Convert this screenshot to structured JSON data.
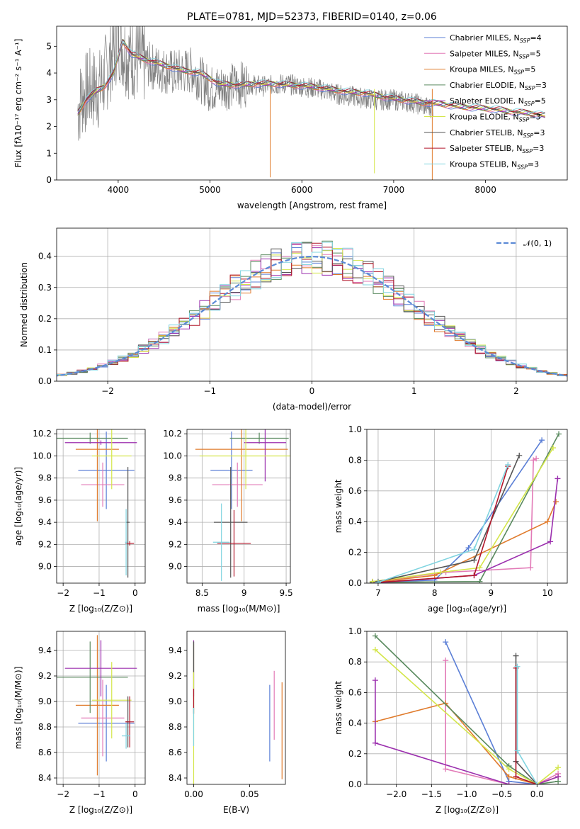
{
  "chart_data": [
    {
      "id": "spectrum",
      "type": "line",
      "title": "PLATE=0781, MJD=52373, FIBERID=0140, z=0.06",
      "xlabel": "wavelength [Angstrom, rest frame]",
      "ylabel": "Flux [fλ10⁻¹⁷ erg cm⁻² s⁻¹ A⁻¹]",
      "xlim": [
        3330,
        8890
      ],
      "ylim": [
        0,
        5.75
      ],
      "xticks": [
        4000,
        5000,
        6000,
        7000,
        8000
      ],
      "yticks": [
        0,
        1,
        2,
        3,
        4,
        5
      ],
      "grid": false,
      "legend_position": "top-right",
      "data_color": "#808080",
      "data_x": [
        3560,
        3600,
        3700,
        3800,
        3900,
        4000,
        4100,
        4200,
        4400,
        4600,
        4800,
        5000,
        5200,
        5400,
        5600,
        5800,
        6000,
        6200,
        6400,
        6600,
        6800,
        7000,
        7200,
        7400,
        7430
      ],
      "data_y": [
        2.6,
        3.1,
        3.4,
        3.4,
        4.3,
        5.3,
        4.6,
        4.5,
        4.2,
        4.0,
        4.1,
        3.4,
        3.5,
        3.6,
        3.5,
        3.6,
        3.5,
        3.4,
        3.2,
        3.1,
        3.0,
        3.0,
        2.9,
        2.7,
        2.7
      ],
      "model_x": [
        3560,
        3650,
        3750,
        3850,
        3950,
        4050,
        4150,
        4300,
        4500,
        4700,
        4900,
        5100,
        5300,
        5500,
        5700,
        5900,
        6100,
        6300,
        6500,
        6700,
        6900,
        7100,
        7300,
        7500,
        7700,
        7900,
        8100,
        8300,
        8500,
        8650
      ],
      "model_y": [
        2.5,
        3.0,
        3.3,
        3.5,
        4.0,
        5.2,
        4.7,
        4.5,
        4.3,
        4.1,
        4.0,
        3.6,
        3.55,
        3.6,
        3.6,
        3.55,
        3.5,
        3.4,
        3.3,
        3.25,
        3.1,
        3.0,
        2.9,
        2.85,
        2.75,
        2.7,
        2.65,
        2.55,
        2.5,
        2.4
      ],
      "series": [
        {
          "name": "Chabrier MILES, N_SSP=4",
          "color": "#5b7fd6"
        },
        {
          "name": "Salpeter MILES, N_SSP=5",
          "color": "#e27ab7"
        },
        {
          "name": "Kroupa MILES, N_SSP=5",
          "color": "#e07b2c"
        },
        {
          "name": "Chabrier ELODIE, N_SSP=3",
          "color": "#5a8a5f"
        },
        {
          "name": "Salpeter ELODIE, N_SSP=5",
          "color": "#9b2fae"
        },
        {
          "name": "Kroupa ELODIE, N_SSP=3",
          "color": "#d4e64a"
        },
        {
          "name": "Chabrier STELIB, N_SSP=3",
          "color": "#555555"
        },
        {
          "name": "Salpeter STELIB, N_SSP=3",
          "color": "#b2182b"
        },
        {
          "name": "Kroupa STELIB, N_SSP=3",
          "color": "#80d4e0"
        }
      ],
      "dips": [
        {
          "x": 5655,
          "to": 0.1,
          "color": "#e07b2c"
        },
        {
          "x": 6790,
          "to": 0.25,
          "color": "#d4e64a"
        },
        {
          "x": 7420,
          "to": 0.0,
          "color": "#e07b2c"
        }
      ]
    },
    {
      "id": "residuals",
      "type": "line",
      "xlabel": "(data-model)/error",
      "ylabel": "Normed distribution",
      "xlim": [
        -2.5,
        2.5
      ],
      "ylim": [
        0,
        0.49
      ],
      "xticks": [
        -2,
        -1,
        0,
        1,
        2
      ],
      "yticks": [
        0.0,
        0.1,
        0.2,
        0.3,
        0.4
      ],
      "grid": true,
      "legend_position": "top-right",
      "normal_label": "𝒩(0, 1)",
      "normal_color": "#5b8ad6",
      "bin_width": 0.1
    },
    {
      "id": "age-vs-z",
      "type": "scatter",
      "xlabel": "Z [log₁₀(Z/Z⊙)]",
      "ylabel": "age  [log₁₀(age/yr)]",
      "xlim": [
        -2.18,
        0.28
      ],
      "ylim": [
        8.85,
        10.24
      ],
      "xticks": [
        -2,
        -1,
        0
      ],
      "yticks": [
        9.0,
        9.2,
        9.4,
        9.6,
        9.8,
        10.0,
        10.2
      ],
      "grid": true,
      "points": [
        {
          "x": -0.8,
          "y": 9.87,
          "xerr": 0.78,
          "yerr": 0.35,
          "color": "#5b7fd6"
        },
        {
          "x": -0.9,
          "y": 9.74,
          "xerr": 0.6,
          "yerr": 0.2,
          "color": "#e27ab7"
        },
        {
          "x": -1.05,
          "y": 10.06,
          "xerr": 0.6,
          "yerr": 0.65,
          "color": "#e07b2c"
        },
        {
          "x": -1.25,
          "y": 10.16,
          "xerr": 1.05,
          "yerr": 0.05,
          "color": "#5a8a5f"
        },
        {
          "x": -0.95,
          "y": 10.12,
          "xerr": 1.0,
          "yerr": 0.02,
          "color": "#9b2fae"
        },
        {
          "x": -0.65,
          "y": 10.0,
          "xerr": 0.55,
          "yerr": 0.3,
          "color": "#d4e64a"
        },
        {
          "x": -0.2,
          "y": 9.4,
          "xerr": 0.05,
          "yerr": 0.5,
          "color": "#555555"
        },
        {
          "x": -0.15,
          "y": 9.21,
          "xerr": 0.12,
          "yerr": 0.02,
          "color": "#b2182b"
        },
        {
          "x": -0.25,
          "y": 9.22,
          "xerr": 0.03,
          "yerr": 0.3,
          "color": "#80d4e0"
        }
      ]
    },
    {
      "id": "age-vs-mass",
      "type": "scatter",
      "xlabel": "mass [log₁₀(M/M⊙)]",
      "xlim": [
        8.32,
        9.55
      ],
      "ylim": [
        8.85,
        10.24
      ],
      "xticks": [
        8.5,
        9.0,
        9.5
      ],
      "yticks": [
        9.0,
        9.2,
        9.4,
        9.6,
        9.8,
        10.0,
        10.2
      ],
      "grid": true,
      "points": [
        {
          "x": 8.85,
          "y": 9.87,
          "xerr": 0.25,
          "yerr": 0.35,
          "color": "#5b7fd6"
        },
        {
          "x": 8.92,
          "y": 9.74,
          "xerr": 0.3,
          "yerr": 0.2,
          "color": "#e27ab7"
        },
        {
          "x": 8.97,
          "y": 10.06,
          "xerr": 0.55,
          "yerr": 0.65,
          "color": "#e07b2c"
        },
        {
          "x": 9.18,
          "y": 10.16,
          "xerr": 0.35,
          "yerr": 0.05,
          "color": "#5a8a5f"
        },
        {
          "x": 9.25,
          "y": 10.12,
          "xerr": 0.25,
          "yerr": 0.35,
          "color": "#9b2fae"
        },
        {
          "x": 9.02,
          "y": 10.0,
          "xerr": 0.55,
          "yerr": 0.3,
          "color": "#d4e64a"
        },
        {
          "x": 8.84,
          "y": 9.4,
          "xerr": 0.2,
          "yerr": 0.5,
          "color": "#555555"
        },
        {
          "x": 8.88,
          "y": 9.21,
          "xerr": 0.2,
          "yerr": 0.3,
          "color": "#b2182b"
        },
        {
          "x": 8.73,
          "y": 9.22,
          "xerr": 0.1,
          "yerr": 0.35,
          "color": "#80d4e0"
        }
      ]
    },
    {
      "id": "mass-weight-vs-age",
      "type": "line",
      "xlabel": "age  [log₁₀(age/yr)]",
      "ylabel": "mass weight",
      "xlim": [
        6.8,
        10.35
      ],
      "ylim": [
        0,
        1.0
      ],
      "xticks": [
        7,
        8,
        9,
        10
      ],
      "yticks": [
        0.0,
        0.2,
        0.4,
        0.6,
        0.8,
        1.0
      ],
      "grid": true,
      "series": [
        {
          "color": "#5b7fd6",
          "x": [
            6.9,
            8.0,
            8.6,
            9.9
          ],
          "y": [
            0.005,
            0.02,
            0.23,
            0.93
          ]
        },
        {
          "color": "#e27ab7",
          "x": [
            6.9,
            8.2,
            9.7,
            9.75,
            9.8
          ],
          "y": [
            0.01,
            0.07,
            0.1,
            0.8,
            0.81
          ]
        },
        {
          "color": "#e07b2c",
          "x": [
            6.9,
            8.0,
            10.0,
            10.15
          ],
          "y": [
            0.005,
            0.05,
            0.4,
            0.53
          ]
        },
        {
          "color": "#5a8a5f",
          "x": [
            6.9,
            8.8,
            10.2
          ],
          "y": [
            0.005,
            0.01,
            0.97
          ]
        },
        {
          "color": "#9b2fae",
          "x": [
            6.9,
            8.7,
            10.05,
            10.18
          ],
          "y": [
            0.0,
            0.05,
            0.27,
            0.68
          ]
        },
        {
          "color": "#d4e64a",
          "x": [
            6.9,
            8.1,
            8.8,
            10.1
          ],
          "y": [
            0.01,
            0.07,
            0.1,
            0.88
          ]
        },
        {
          "color": "#555555",
          "x": [
            7.0,
            8.7,
            9.5
          ],
          "y": [
            0.01,
            0.15,
            0.83
          ]
        },
        {
          "color": "#b2182b",
          "x": [
            7.0,
            8.7,
            9.3
          ],
          "y": [
            0.005,
            0.05,
            0.76
          ]
        },
        {
          "color": "#80d4e0",
          "x": [
            7.0,
            8.7,
            9.3
          ],
          "y": [
            0.005,
            0.22,
            0.77
          ]
        }
      ]
    },
    {
      "id": "mass-vs-z",
      "type": "scatter",
      "xlabel": "Z [log₁₀(Z/Z⊙)]",
      "ylabel": "mass [log₁₀(M/M⊙)]",
      "xlim": [
        -2.18,
        0.28
      ],
      "ylim": [
        8.35,
        9.55
      ],
      "xticks": [
        -2,
        -1,
        0
      ],
      "yticks": [
        8.4,
        8.6,
        8.8,
        9.0,
        9.2,
        9.4
      ],
      "grid": true,
      "points": [
        {
          "x": -0.8,
          "y": 8.83,
          "xerr": 0.78,
          "yerr": 0.3,
          "color": "#5b7fd6"
        },
        {
          "x": -0.9,
          "y": 8.87,
          "xerr": 0.6,
          "yerr": 0.3,
          "color": "#e27ab7"
        },
        {
          "x": -1.05,
          "y": 8.97,
          "xerr": 0.6,
          "yerr": 0.55,
          "color": "#e07b2c"
        },
        {
          "x": -1.25,
          "y": 9.19,
          "xerr": 1.05,
          "yerr": 0.28,
          "color": "#5a8a5f"
        },
        {
          "x": -0.95,
          "y": 9.26,
          "xerr": 1.0,
          "yerr": 0.22,
          "color": "#9b2fae"
        },
        {
          "x": -0.65,
          "y": 9.01,
          "xerr": 0.55,
          "yerr": 0.3,
          "color": "#d4e64a"
        },
        {
          "x": -0.2,
          "y": 8.84,
          "xerr": 0.05,
          "yerr": 0.2,
          "color": "#555555"
        },
        {
          "x": -0.15,
          "y": 8.84,
          "xerr": 0.12,
          "yerr": 0.2,
          "color": "#b2182b"
        },
        {
          "x": -0.25,
          "y": 8.73,
          "xerr": 0.12,
          "yerr": 0.1,
          "color": "#80d4e0"
        }
      ]
    },
    {
      "id": "mass-vs-ebv",
      "type": "scatter",
      "xlabel": "E(B-V)",
      "xlim": [
        -0.006,
        0.082
      ],
      "ylim": [
        8.35,
        9.55
      ],
      "xticks": [
        0.0,
        0.05
      ],
      "tick_labels": [
        "0.00",
        "0.05"
      ],
      "yticks": [
        8.4,
        8.6,
        8.8,
        9.0,
        9.2,
        9.4
      ],
      "grid": false,
      "points": [
        {
          "x": 0.068,
          "y": 8.83,
          "yerr": 0.3,
          "color": "#5b7fd6"
        },
        {
          "x": 0.072,
          "y": 8.97,
          "yerr": 0.27,
          "color": "#e27ab7"
        },
        {
          "x": 0.079,
          "y": 8.77,
          "yerr": 0.38,
          "color": "#e07b2c"
        },
        {
          "x": 0.0,
          "y": 9.19,
          "yerr": 0.28,
          "color": "#5a8a5f"
        },
        {
          "x": 0.0,
          "y": 9.26,
          "yerr": 0.22,
          "color": "#9b2fae"
        },
        {
          "x": 0.0,
          "y": 8.9,
          "yerr": 0.55,
          "color": "#d4e64a"
        },
        {
          "x": 0.0,
          "y": 9.35,
          "yerr": 0.12,
          "color": "#555555"
        },
        {
          "x": 0.0,
          "y": 9.0,
          "yerr": 0.1,
          "color": "#b2182b"
        },
        {
          "x": 0.0,
          "y": 8.8,
          "yerr": 0.15,
          "color": "#80d4e0"
        }
      ]
    },
    {
      "id": "mass-weight-vs-z",
      "type": "line",
      "xlabel": "Z [log₁₀(Z/Z⊙)]",
      "ylabel": "mass weight",
      "xlim": [
        -2.42,
        0.43
      ],
      "ylim": [
        0,
        1.0
      ],
      "xticks": [
        -2.0,
        -1.5,
        -1.0,
        -0.5,
        0.0
      ],
      "tick_labels": [
        "−2.0",
        "−1.5",
        "−1.0",
        "−0.5",
        "0.0"
      ],
      "yticks": [
        0.0,
        0.2,
        0.4,
        0.6,
        0.8,
        1.0
      ],
      "grid": true,
      "series": [
        {
          "color": "#5b7fd6",
          "x": [
            -1.3,
            -0.4,
            0.0
          ],
          "y": [
            0.93,
            0.02,
            0.0
          ]
        },
        {
          "color": "#e27ab7",
          "x": [
            -1.3,
            -1.3,
            -0.4,
            0.0,
            0.3
          ],
          "y": [
            0.81,
            0.1,
            0.0,
            0.0,
            0.07
          ]
        },
        {
          "color": "#e07b2c",
          "x": [
            -2.3,
            -1.3,
            -0.4,
            0.0,
            0.3
          ],
          "y": [
            0.41,
            0.53,
            0.05,
            0.0,
            0.05
          ]
        },
        {
          "color": "#5a8a5f",
          "x": [
            -2.3,
            -0.4,
            0.0,
            0.3
          ],
          "y": [
            0.97,
            0.12,
            0.0,
            0.02
          ]
        },
        {
          "color": "#9b2fae",
          "x": [
            -2.3,
            -2.3,
            -0.4,
            0.0,
            0.3
          ],
          "y": [
            0.68,
            0.27,
            0.0,
            0.0,
            0.05
          ]
        },
        {
          "color": "#d4e64a",
          "x": [
            -2.3,
            -0.4,
            0.0,
            0.3
          ],
          "y": [
            0.88,
            0.1,
            0.0,
            0.11
          ]
        },
        {
          "color": "#555555",
          "x": [
            -0.3,
            -0.3,
            -0.3,
            0.0
          ],
          "y": [
            0.84,
            0.15,
            0.15,
            0.0
          ]
        },
        {
          "color": "#b2182b",
          "x": [
            -0.3,
            -0.3,
            0.0
          ],
          "y": [
            0.76,
            0.05,
            0.0
          ]
        },
        {
          "color": "#80d4e0",
          "x": [
            -0.28,
            -0.28,
            0.0
          ],
          "y": [
            0.77,
            0.22,
            0.0
          ]
        }
      ]
    }
  ]
}
